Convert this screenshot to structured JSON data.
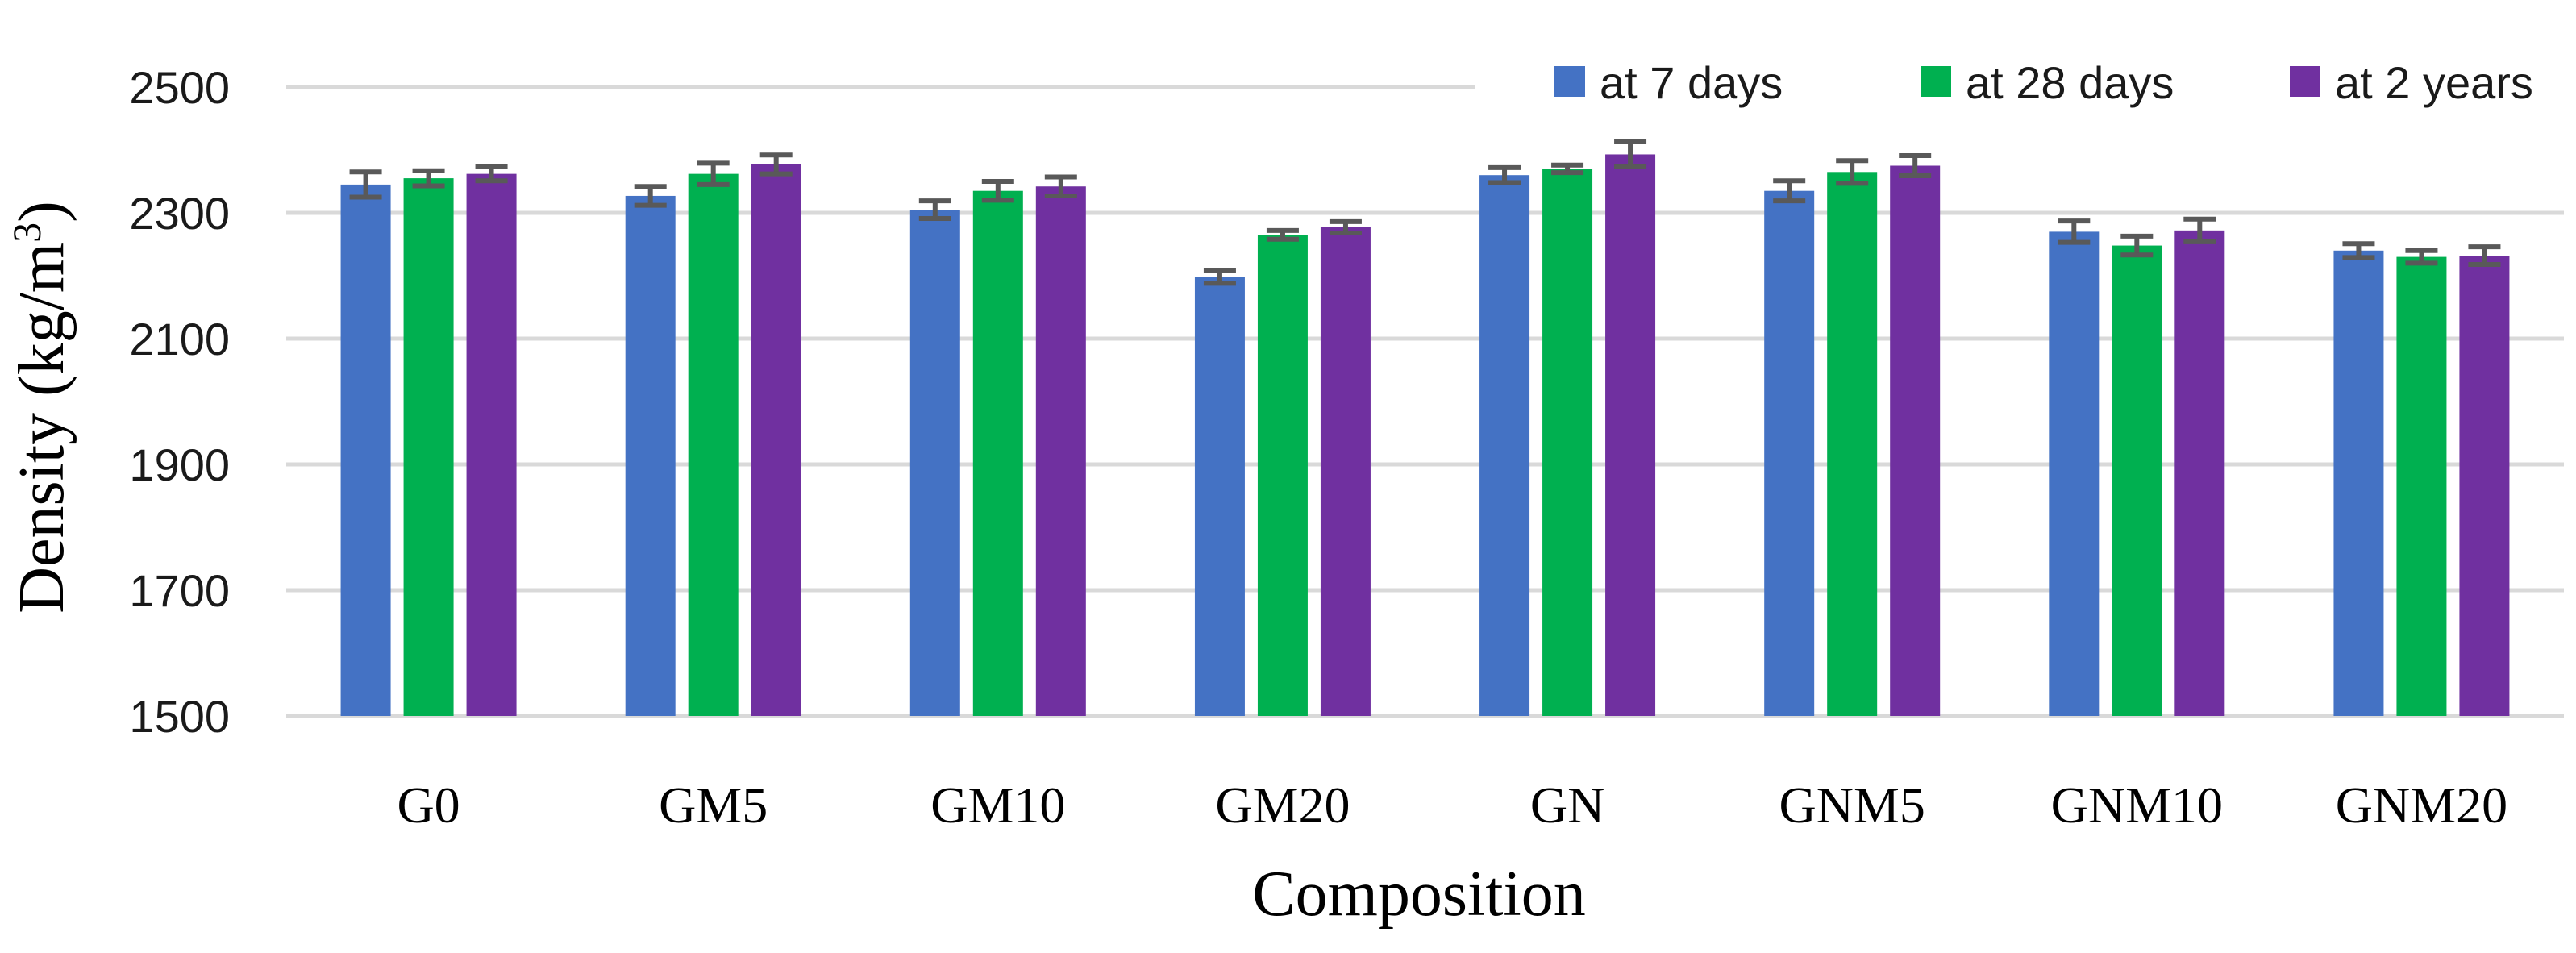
{
  "chart_data": {
    "type": "bar",
    "title": "",
    "xlabel": "Composition",
    "ylabel_main": "Density (kg/m",
    "ylabel_sup": "3",
    "ylabel_close": ")",
    "ylim": [
      1500,
      2500
    ],
    "yticks": [
      1500,
      1700,
      1900,
      2100,
      2300,
      2500
    ],
    "grid": true,
    "legend_position": "top-right",
    "categories": [
      "G0",
      "GM5",
      "GM10",
      "GM20",
      "GN",
      "GNM5",
      "GNM10",
      "GNM20"
    ],
    "series": [
      {
        "name": "at 7 days",
        "color": "#4472C4",
        "values": [
          2345,
          2327,
          2305,
          2198,
          2360,
          2335,
          2270,
          2240
        ],
        "errors": [
          20,
          15,
          14,
          10,
          12,
          16,
          17,
          11
        ]
      },
      {
        "name": "at 28 days",
        "color": "#00B050",
        "values": [
          2355,
          2362,
          2335,
          2265,
          2370,
          2365,
          2248,
          2230
        ],
        "errors": [
          12,
          17,
          15,
          7,
          6,
          18,
          15,
          10
        ]
      },
      {
        "name": "at 2 years",
        "color": "#7030A0",
        "values": [
          2362,
          2377,
          2342,
          2277,
          2393,
          2375,
          2272,
          2232
        ],
        "errors": [
          11,
          15,
          15,
          9,
          20,
          16,
          18,
          14
        ]
      }
    ],
    "error_bar_color": "#595959",
    "grid_color": "#d9d9d9"
  }
}
